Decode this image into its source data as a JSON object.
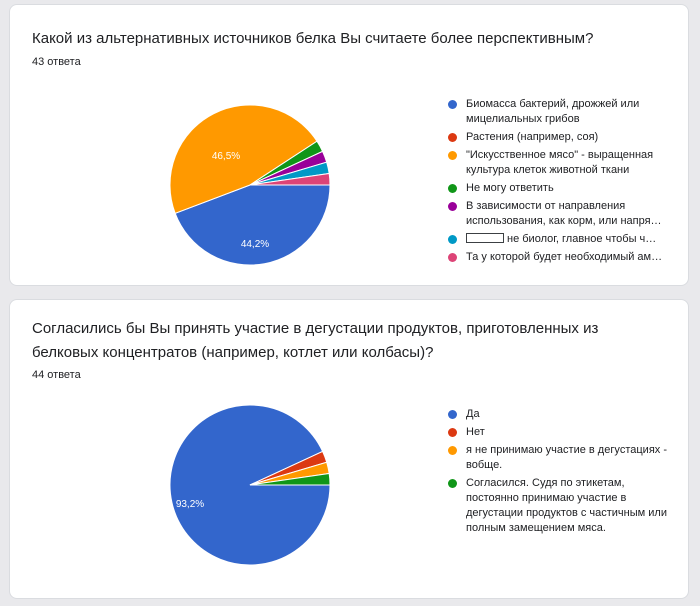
{
  "colors": {
    "blue": "#3366cc",
    "red": "#dc3912",
    "orange": "#ff9900",
    "green": "#109618",
    "purple": "#990099",
    "teal": "#0099c6",
    "pink": "#dd4477"
  },
  "chart_data": [
    {
      "type": "pie",
      "title": "Какой из альтернативных источников белка Вы считаете более перспективным?",
      "responses": "43 ответа",
      "categories": [
        "Биомасса бактерий, дрожжей или мицелиальных грибов",
        "Растения (например, соя)",
        "\"Искусственное мясо\" - выращенная культура клеток животной ткани",
        "Не могу ответить",
        "В зависимости от направления использования, как корм, или напря…",
        "не биолог, главное чтобы ч…",
        "Та у которой будет необходимый ам…"
      ],
      "values": [
        44.2,
        0,
        46.5,
        2.3,
        2.3,
        2.3,
        2.3
      ],
      "data_labels": [
        "44,2%",
        "",
        "46,5%",
        "",
        "",
        "",
        ""
      ],
      "colors": [
        "#3366cc",
        "#dc3912",
        "#ff9900",
        "#109618",
        "#990099",
        "#0099c6",
        "#dd4477"
      ],
      "legend_position": "right"
    },
    {
      "type": "pie",
      "title": "Согласились бы Вы принять участие в дегустации продуктов, приготовленных из белковых концентратов (например, котлет или колбасы)?",
      "responses": "44 ответа",
      "categories": [
        "Да",
        "Нет",
        "я не принимаю участие в дегуcтациях - вобще.",
        "Согласился. Судя по этикетам, постоянно принимаю участие в дегустации продуктов с частичным или полным замещением мяса."
      ],
      "values": [
        93.2,
        2.3,
        2.3,
        2.3
      ],
      "data_labels": [
        "93,2%",
        "",
        "",
        ""
      ],
      "colors": [
        "#3366cc",
        "#dc3912",
        "#ff9900",
        "#109618"
      ],
      "legend_position": "right"
    }
  ]
}
